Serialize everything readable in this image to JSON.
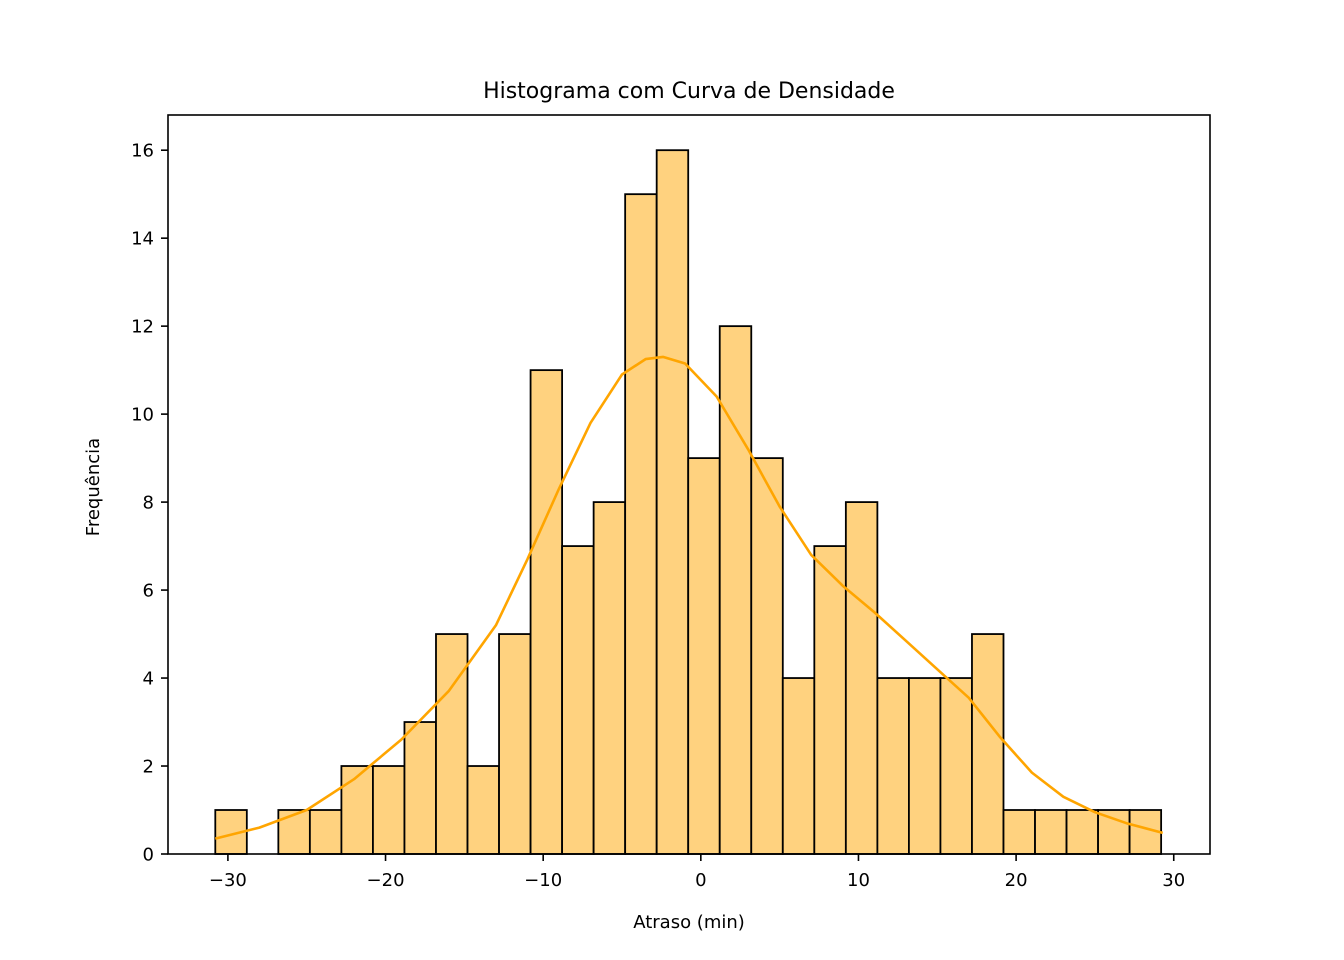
{
  "chart_data": {
    "type": "bar",
    "subtype": "histogram",
    "title": "Histograma com Curva de Densidade",
    "xlabel": "Atraso (min)",
    "ylabel": "Frequência",
    "xlim": [
      -33.8,
      32.3
    ],
    "ylim": [
      0,
      16.8
    ],
    "xticks": [
      -30,
      -20,
      -10,
      0,
      10,
      20,
      30
    ],
    "xtick_labels": [
      "−30",
      "−20",
      "−10",
      "0",
      "10",
      "20",
      "30"
    ],
    "yticks": [
      0,
      2,
      4,
      6,
      8,
      10,
      12,
      14,
      16
    ],
    "ytick_labels": [
      "0",
      "2",
      "4",
      "6",
      "8",
      "10",
      "12",
      "14",
      "16"
    ],
    "grid": false,
    "bins": {
      "start": -30.8,
      "width": 2.0,
      "counts": [
        1,
        0,
        1,
        1,
        2,
        2,
        3,
        5,
        2,
        5,
        11,
        7,
        8,
        15,
        16,
        9,
        12,
        9,
        4,
        7,
        8,
        4,
        4,
        4,
        5,
        1,
        1,
        1,
        1,
        1
      ]
    },
    "density_curve": {
      "x": [
        -30.8,
        -28,
        -25,
        -22,
        -19,
        -16,
        -13,
        -11,
        -9,
        -7,
        -5,
        -3.5,
        -2.4,
        -1,
        1,
        3,
        5,
        7,
        9,
        11,
        13,
        15,
        17,
        19,
        21,
        23,
        25,
        27,
        29.3
      ],
      "y": [
        0.35,
        0.6,
        1.0,
        1.7,
        2.6,
        3.7,
        5.2,
        6.7,
        8.3,
        9.8,
        10.9,
        11.25,
        11.3,
        11.15,
        10.4,
        9.2,
        7.9,
        6.8,
        6.1,
        5.5,
        4.85,
        4.2,
        3.55,
        2.65,
        1.85,
        1.3,
        0.95,
        0.7,
        0.48
      ]
    },
    "colors": {
      "bar_fill": "#ffd27f",
      "bar_edge": "#000000",
      "curve": "#ffa500"
    }
  }
}
